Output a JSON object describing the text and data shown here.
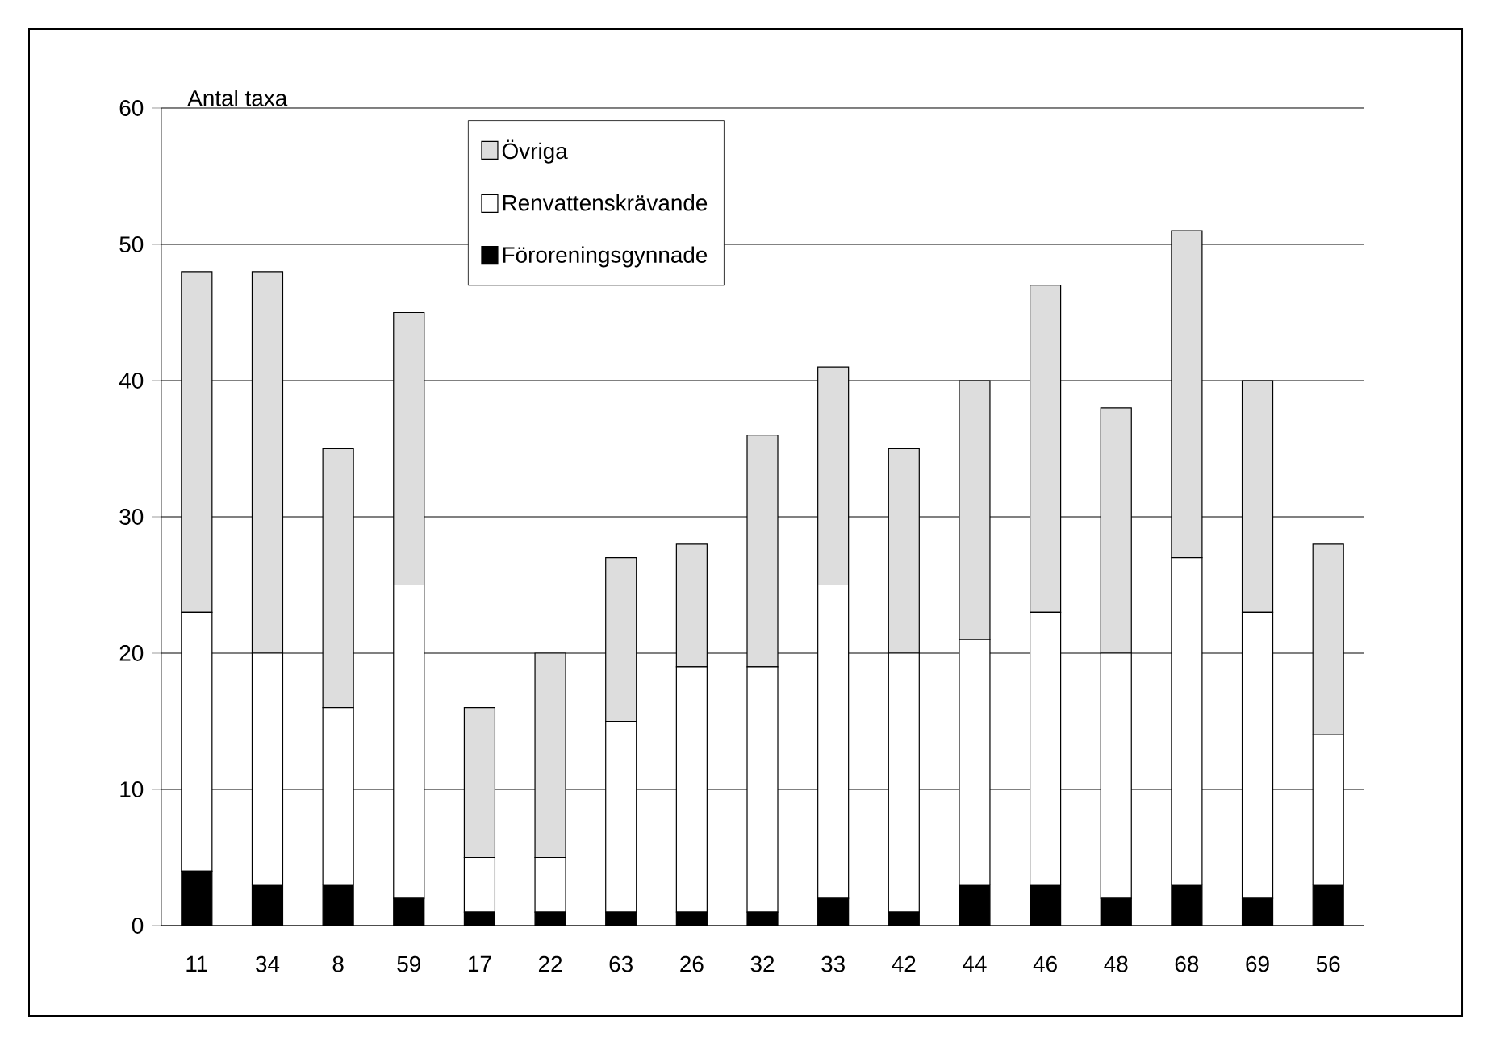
{
  "chart_data": {
    "type": "bar",
    "stacked": true,
    "ylabel": "Antal taxa",
    "categories": [
      "11",
      "34",
      "8",
      "59",
      "17",
      "22",
      "63",
      "26",
      "32",
      "33",
      "42",
      "44",
      "46",
      "48",
      "68",
      "69",
      "56"
    ],
    "series": [
      {
        "name": "Föroreningsgynnade",
        "color": "#000000",
        "values": [
          4,
          3,
          3,
          2,
          1,
          1,
          1,
          1,
          1,
          2,
          1,
          3,
          3,
          2,
          3,
          2,
          3
        ]
      },
      {
        "name": "Renvattenskrävande",
        "color": "#ffffff",
        "values": [
          19,
          17,
          13,
          23,
          4,
          4,
          14,
          18,
          18,
          23,
          19,
          18,
          20,
          18,
          24,
          21,
          11
        ]
      },
      {
        "name": "Övriga",
        "color": "#dddddd",
        "values": [
          25,
          28,
          19,
          20,
          11,
          15,
          12,
          9,
          17,
          16,
          15,
          19,
          24,
          18,
          24,
          17,
          14
        ]
      }
    ],
    "ylim": [
      0,
      60
    ],
    "yticks": [
      0,
      10,
      20,
      30,
      40,
      50,
      60
    ],
    "grid": "y",
    "legend": "top"
  }
}
